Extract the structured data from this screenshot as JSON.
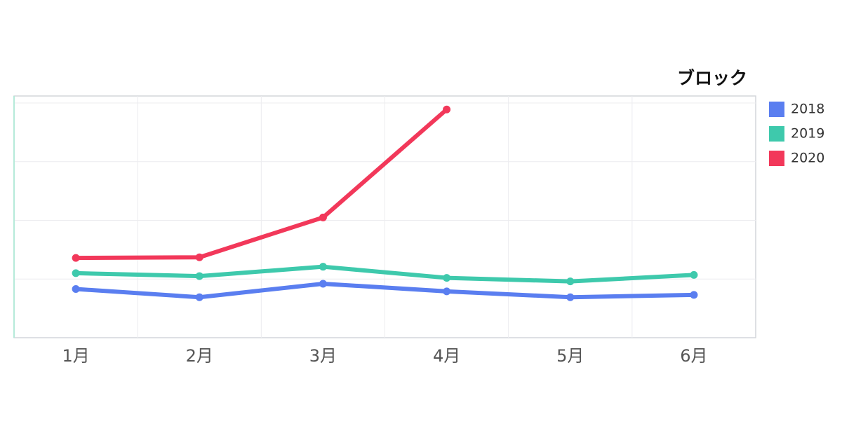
{
  "chart_data": {
    "type": "line",
    "legend_title": "ブロック",
    "categories": [
      "1月",
      "2月",
      "3月",
      "4月",
      "5月",
      "6月"
    ],
    "series": [
      {
        "name": "2018",
        "color": "#5a7ef0",
        "values": [
          0.83,
          0.69,
          0.92,
          0.79,
          0.69,
          0.73
        ]
      },
      {
        "name": "2019",
        "color": "#3ec9ac",
        "values": [
          1.1,
          1.05,
          1.21,
          1.02,
          0.96,
          1.07
        ]
      },
      {
        "name": "2020",
        "color": "#f2385a",
        "values": [
          1.36,
          1.37,
          2.05,
          3.89,
          null,
          null
        ]
      }
    ],
    "ylim": [
      0,
      4.12
    ],
    "yticks": [
      1,
      2,
      3,
      4
    ],
    "grid": true,
    "legend": "right"
  }
}
